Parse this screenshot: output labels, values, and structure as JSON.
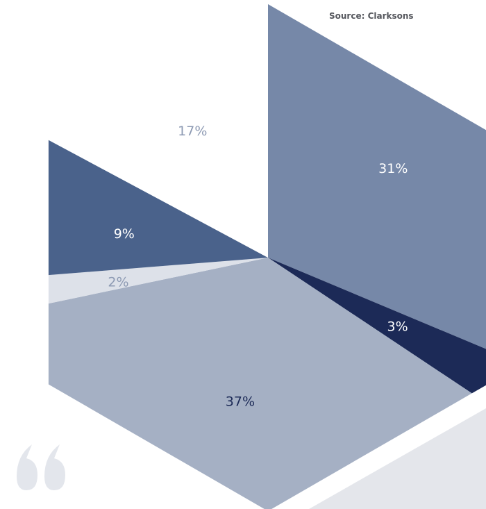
{
  "source": "Source: Clarksons",
  "chart_data": {
    "type": "pie",
    "shape": "hexagon",
    "slices": [
      {
        "value": 31,
        "label": "31%",
        "color": "#7688a8",
        "label_color": "#ffffff"
      },
      {
        "value": 3,
        "label": "3%",
        "color": "#1c2a57",
        "label_color": "#ffffff"
      },
      {
        "value": 37,
        "label": "37%",
        "color": "#a5b0c4",
        "label_color": "#1c2a57"
      },
      {
        "value": 2,
        "label": "2%",
        "color": "#dde1e9",
        "label_color": "#8d9ab3"
      },
      {
        "value": 9,
        "label": "9%",
        "color": "#4a628b",
        "label_color": "#ffffff"
      },
      {
        "value": 17,
        "label": "17%",
        "color": "#ffffff",
        "label_color": "#8d9ab3"
      }
    ]
  },
  "decor": {
    "quote_icon": "quote-mark-icon",
    "quote_color": "#e3e6ec",
    "bg_shape_color": "#e4e6eb"
  }
}
